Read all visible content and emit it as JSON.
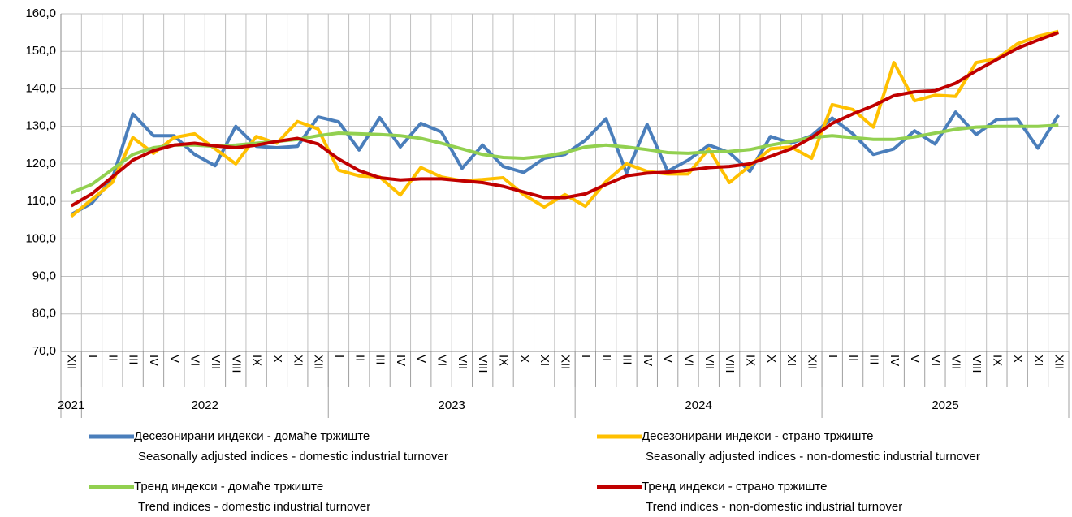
{
  "chart_data": {
    "type": "line",
    "categories": [
      "XII",
      "I",
      "II",
      "III",
      "IV",
      "V",
      "VI",
      "VII",
      "VIII",
      "IX",
      "X",
      "XI",
      "XII",
      "I",
      "II",
      "III",
      "IV",
      "V",
      "VI",
      "VII",
      "VIII",
      "IX",
      "X",
      "XI",
      "XII",
      "I",
      "II",
      "III",
      "IV",
      "V",
      "VI",
      "VII",
      "VIII",
      "IX",
      "X",
      "XI",
      "XII",
      "I",
      "II",
      "III",
      "IV",
      "V",
      "VI",
      "VII",
      "VIII",
      "IX",
      "X",
      "XI",
      "XII"
    ],
    "year_groups": [
      {
        "label": "2021",
        "months": 1
      },
      {
        "label": "2022",
        "months": 12
      },
      {
        "label": "2023",
        "months": 12
      },
      {
        "label": "2024",
        "months": 12
      },
      {
        "label": "2025",
        "months": 12
      }
    ],
    "ylim": [
      70,
      160
    ],
    "yticks": [
      {
        "value": 70,
        "label": "70,0"
      },
      {
        "value": 80,
        "label": "80,0"
      },
      {
        "value": 90,
        "label": "90,0"
      },
      {
        "value": 100,
        "label": "100,0"
      },
      {
        "value": 110,
        "label": "110,0"
      },
      {
        "value": 120,
        "label": "120,0"
      },
      {
        "value": 130,
        "label": "130,0"
      },
      {
        "value": 140,
        "label": "140,0"
      },
      {
        "value": 150,
        "label": "150,0"
      },
      {
        "value": 160,
        "label": "160,0"
      }
    ],
    "grid": true,
    "series": [
      {
        "name": "Десезонирани индекси - домаће тржиште",
        "name_en": "Seasonally adjusted indices - domestic industrial turnover",
        "color": "#4a7ebb",
        "values": [
          106.5,
          109.5,
          116,
          133.3,
          127.5,
          127.5,
          122.5,
          119.5,
          130,
          124.7,
          124.3,
          124.7,
          132.5,
          131.2,
          123.7,
          132.3,
          124.5,
          130.8,
          128.5,
          118.8,
          125,
          119.3,
          117.7,
          121.5,
          122.5,
          126.3,
          132,
          117.5,
          130.5,
          118,
          121,
          125,
          123,
          118,
          127.3,
          125.5,
          127.5,
          132.2,
          128,
          122.5,
          124,
          128.8,
          125.3,
          133.8,
          127.8,
          131.8,
          132,
          124.2,
          133
        ]
      },
      {
        "name": "Десезонирани индекси - страно тржиште",
        "name_en": "Seasonally adjusted indices - non-domestic industrial turnover",
        "color": "#ffc000",
        "values": [
          106,
          110.5,
          115,
          127,
          122.8,
          127,
          128,
          124,
          120,
          127.3,
          125.5,
          131.3,
          129.3,
          118.3,
          116.8,
          116.5,
          111.7,
          119,
          116.5,
          115.5,
          115.8,
          116.3,
          111.8,
          108.5,
          111.8,
          108.7,
          115.3,
          120,
          118,
          117.3,
          117.3,
          124,
          115,
          119.5,
          124,
          124.5,
          121.5,
          135.8,
          134.5,
          129.8,
          147,
          136.8,
          138.3,
          138,
          147,
          148,
          152,
          154,
          155.3
        ]
      },
      {
        "name": "Тренд индекси - домаће тржиште",
        "name_en": "Trend indices - domestic industrial turnover",
        "color": "#92d050",
        "values": [
          112.3,
          114.5,
          118.5,
          122.5,
          124.3,
          125,
          125,
          124.7,
          125,
          125.5,
          126,
          126.5,
          127.5,
          128.2,
          128,
          127.8,
          127.5,
          126.8,
          125.5,
          124,
          122.5,
          121.7,
          121.5,
          122,
          123,
          124.5,
          125,
          124.5,
          123.8,
          123,
          122.8,
          123.2,
          123.3,
          123.8,
          125,
          126,
          127,
          127.5,
          127,
          126.5,
          126.5,
          127.2,
          128.2,
          129.2,
          129.8,
          130,
          130,
          130,
          130.3
        ]
      },
      {
        "name": "Тренд индекси - страно тржиште",
        "name_en": "Trend indices - non-domestic industrial turnover",
        "color": "#c00000",
        "values": [
          108.8,
          112,
          116.5,
          121,
          123.5,
          125,
          125.5,
          124.8,
          124.3,
          125,
          126,
          126.8,
          125.3,
          121.3,
          118.2,
          116.3,
          115.7,
          116,
          116,
          115.5,
          115,
          114,
          112.5,
          111,
          111,
          112,
          114.5,
          116.8,
          117.5,
          117.8,
          118.3,
          119,
          119.3,
          120,
          122,
          124,
          127,
          130.8,
          133.3,
          135.5,
          138.2,
          139.2,
          139.5,
          141.5,
          144.8,
          147.8,
          150.8,
          153,
          155
        ]
      }
    ]
  }
}
